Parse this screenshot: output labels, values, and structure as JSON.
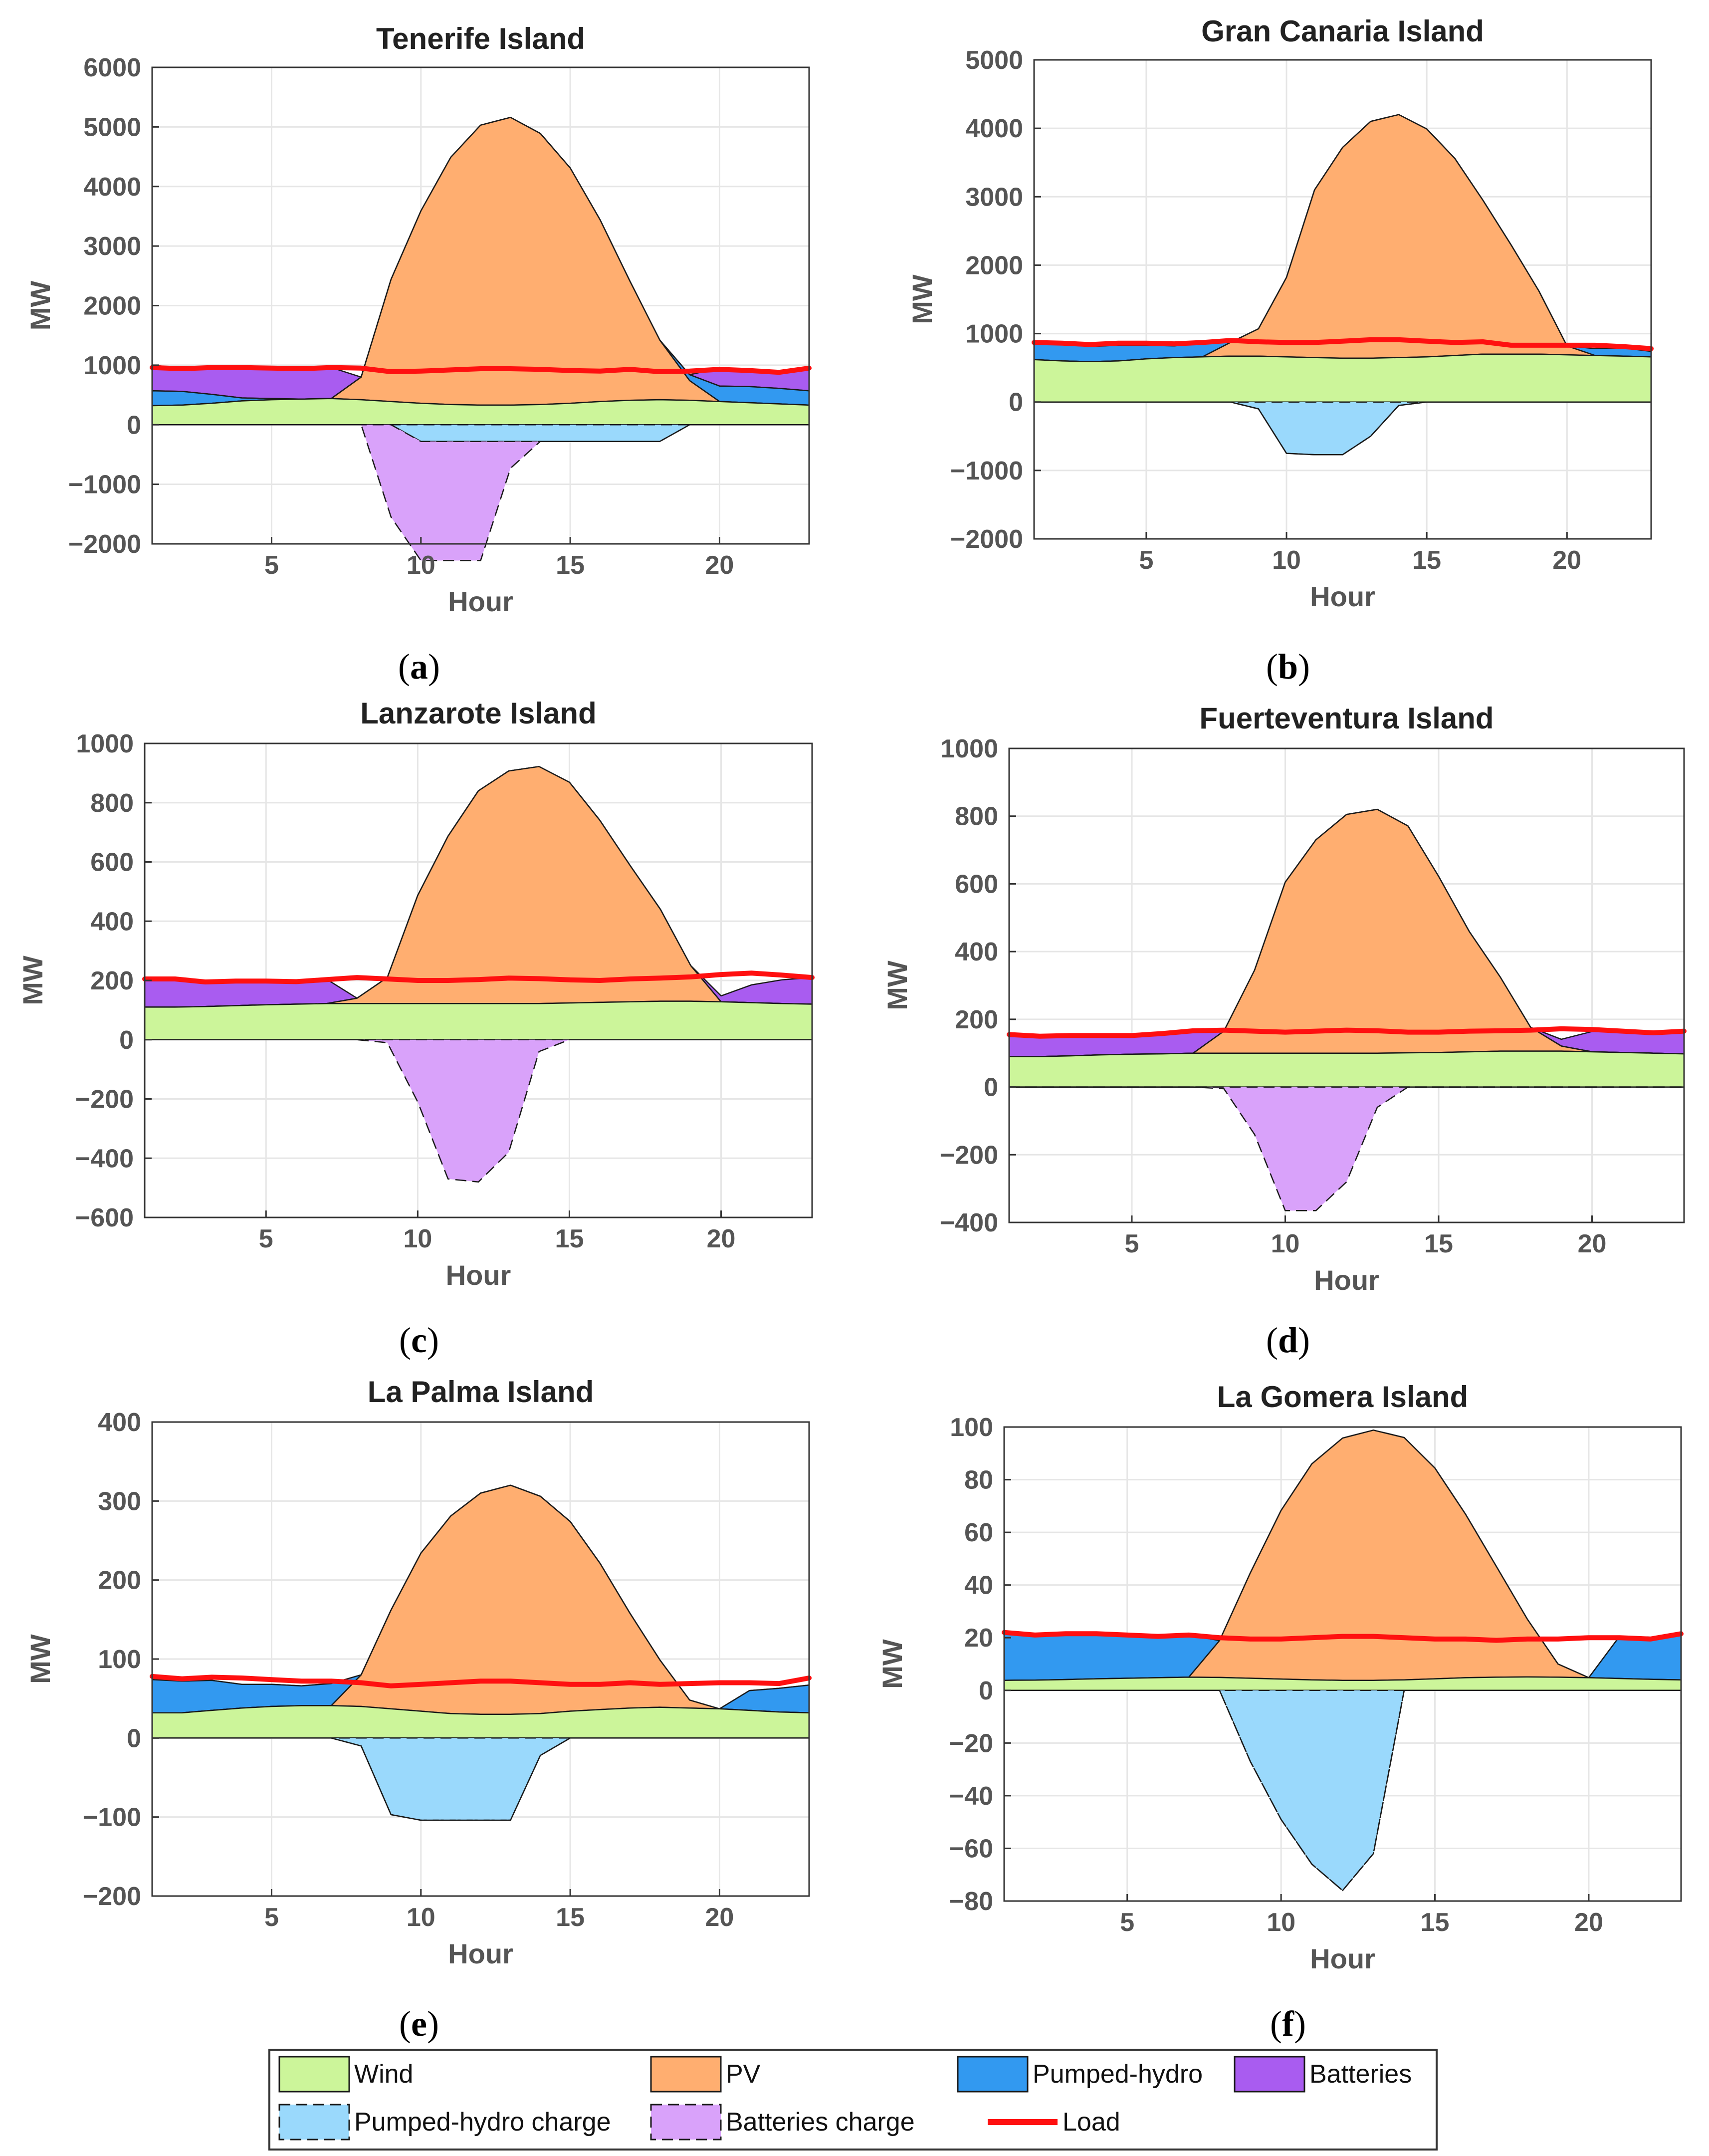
{
  "legend": {
    "items": [
      {
        "key": "wind",
        "label": "Wind"
      },
      {
        "key": "pv",
        "label": "PV"
      },
      {
        "key": "pumped",
        "label": "Pumped-hydro"
      },
      {
        "key": "batt",
        "label": "Batteries"
      },
      {
        "key": "pumped_charge",
        "label": "Pumped-hydro charge"
      },
      {
        "key": "batt_charge",
        "label": "Batteries charge"
      },
      {
        "key": "load",
        "label": "Load"
      }
    ]
  },
  "colors": {
    "wind": "#ccf59a",
    "pv": "#ffae70",
    "pumped": "#3299f0",
    "batt": "#a95cf0",
    "pumped_charge": "#9ad9fc",
    "batt_charge": "#d9a2fa",
    "load": "#ff1010",
    "grid": "#e6e6e6",
    "axis": "#333333"
  },
  "chart_data": [
    {
      "type": "area",
      "caption": "a",
      "title": "Tenerife Island",
      "xlabel": "Hour",
      "ylabel": "MW",
      "xlim": [
        1,
        23
      ],
      "ylim": [
        -2000,
        6000
      ],
      "xticks": [
        5,
        10,
        15,
        20
      ],
      "yticks": [
        -2000,
        -1000,
        0,
        1000,
        2000,
        3000,
        4000,
        5000,
        6000
      ],
      "ytick_labels": [
        "−2000",
        "−1000",
        "0",
        "1000",
        "2000",
        "3000",
        "4000",
        "5000",
        "6000"
      ],
      "x": [
        1,
        2,
        3,
        4,
        5,
        6,
        7,
        8,
        9,
        10,
        11,
        12,
        13,
        14,
        15,
        16,
        17,
        18,
        19,
        20,
        21,
        22,
        23
      ],
      "wind": [
        320,
        330,
        360,
        400,
        420,
        430,
        440,
        420,
        390,
        360,
        340,
        330,
        330,
        340,
        360,
        390,
        410,
        420,
        410,
        390,
        370,
        350,
        330
      ],
      "pv": [
        0,
        0,
        0,
        0,
        0,
        0,
        0,
        380,
        2050,
        3230,
        4150,
        4700,
        4830,
        4550,
        3950,
        3050,
        2000,
        1000,
        330,
        0,
        0,
        0,
        0
      ],
      "pumped": [
        250,
        230,
        150,
        50,
        20,
        0,
        0,
        0,
        0,
        0,
        0,
        0,
        0,
        0,
        0,
        0,
        0,
        0,
        100,
        260,
        270,
        260,
        240
      ],
      "batt": [
        430,
        390,
        480,
        520,
        500,
        500,
        520,
        0,
        0,
        0,
        0,
        0,
        0,
        0,
        0,
        0,
        0,
        0,
        0,
        300,
        280,
        290,
        410
      ],
      "pumped_charge": [
        0,
        0,
        0,
        0,
        0,
        0,
        0,
        0,
        0,
        -280,
        -280,
        -280,
        -280,
        -280,
        -280,
        -280,
        -280,
        -280,
        0,
        0,
        0,
        0,
        0
      ],
      "batt_charge": [
        0,
        0,
        0,
        0,
        0,
        0,
        0,
        0,
        -1550,
        -2000,
        -2000,
        -2000,
        -450,
        0,
        0,
        0,
        0,
        0,
        0,
        0,
        0,
        0,
        0
      ],
      "load": [
        960,
        940,
        960,
        960,
        950,
        940,
        960,
        950,
        890,
        900,
        920,
        940,
        940,
        930,
        910,
        900,
        930,
        890,
        900,
        930,
        910,
        880,
        950
      ]
    },
    {
      "type": "area",
      "caption": "b",
      "title": "Gran Canaria Island",
      "xlabel": "Hour",
      "ylabel": "MW",
      "xlim": [
        1,
        23
      ],
      "ylim": [
        -2000,
        5000
      ],
      "xticks": [
        5,
        10,
        15,
        20
      ],
      "yticks": [
        -2000,
        -1000,
        0,
        1000,
        2000,
        3000,
        4000,
        5000
      ],
      "ytick_labels": [
        "−2000",
        "−1000",
        "0",
        "1000",
        "2000",
        "3000",
        "4000",
        "5000"
      ],
      "x": [
        1,
        2,
        3,
        4,
        5,
        6,
        7,
        8,
        9,
        10,
        11,
        12,
        13,
        14,
        15,
        16,
        17,
        18,
        19,
        20,
        21,
        22,
        23
      ],
      "wind": [
        620,
        600,
        590,
        600,
        630,
        650,
        660,
        670,
        670,
        660,
        650,
        640,
        640,
        650,
        660,
        680,
        700,
        700,
        700,
        690,
        680,
        670,
        660
      ],
      "pv": [
        0,
        0,
        0,
        0,
        0,
        0,
        0,
        200,
        400,
        1160,
        2450,
        3080,
        3460,
        3550,
        3330,
        2880,
        2250,
        1600,
        920,
        130,
        0,
        0,
        0
      ],
      "pumped": [
        230,
        250,
        220,
        230,
        200,
        170,
        200,
        0,
        0,
        0,
        0,
        0,
        0,
        0,
        0,
        0,
        0,
        0,
        0,
        0,
        100,
        120,
        80
      ],
      "batt": [
        0,
        0,
        0,
        0,
        0,
        0,
        0,
        0,
        0,
        0,
        0,
        0,
        0,
        0,
        0,
        0,
        0,
        0,
        0,
        0,
        0,
        0,
        0
      ],
      "pumped_charge": [
        0,
        0,
        0,
        0,
        0,
        0,
        0,
        0,
        -100,
        -750,
        -770,
        -770,
        -500,
        -50,
        0,
        0,
        0,
        0,
        0,
        0,
        0,
        0,
        0
      ],
      "batt_charge": [
        0,
        0,
        0,
        0,
        0,
        0,
        0,
        0,
        0,
        0,
        0,
        0,
        0,
        0,
        0,
        0,
        0,
        0,
        0,
        0,
        0,
        0,
        0
      ],
      "load": [
        870,
        860,
        840,
        860,
        860,
        850,
        870,
        900,
        880,
        870,
        870,
        890,
        910,
        910,
        890,
        870,
        880,
        830,
        830,
        830,
        830,
        810,
        780
      ]
    },
    {
      "type": "area",
      "caption": "c",
      "title": "Lanzarote Island",
      "xlabel": "Hour",
      "ylabel": "MW",
      "xlim": [
        1,
        23
      ],
      "ylim": [
        -600,
        1000
      ],
      "xticks": [
        5,
        10,
        15,
        20
      ],
      "yticks": [
        -600,
        -400,
        -200,
        0,
        200,
        400,
        600,
        800,
        1000
      ],
      "ytick_labels": [
        "−600",
        "−400",
        "−200",
        "0",
        "200",
        "400",
        "600",
        "800",
        "1000"
      ],
      "x": [
        1,
        2,
        3,
        4,
        5,
        6,
        7,
        8,
        9,
        10,
        11,
        12,
        13,
        14,
        15,
        16,
        17,
        18,
        19,
        20,
        21,
        22,
        23
      ],
      "wind": [
        110,
        110,
        112,
        115,
        118,
        120,
        122,
        122,
        122,
        122,
        122,
        122,
        122,
        122,
        124,
        126,
        128,
        130,
        130,
        128,
        125,
        122,
        120
      ],
      "pv": [
        0,
        0,
        0,
        0,
        0,
        0,
        0,
        18,
        88,
        365,
        565,
        718,
        785,
        800,
        745,
        615,
        460,
        310,
        120,
        0,
        0,
        0,
        0
      ],
      "pumped": [
        0,
        0,
        0,
        0,
        0,
        0,
        0,
        0,
        0,
        0,
        0,
        0,
        0,
        0,
        0,
        0,
        0,
        0,
        0,
        0,
        0,
        0,
        0
      ],
      "batt": [
        100,
        100,
        88,
        82,
        80,
        78,
        82,
        0,
        0,
        0,
        0,
        0,
        0,
        0,
        0,
        0,
        0,
        0,
        0,
        20,
        60,
        80,
        90
      ],
      "pumped_charge": [
        0,
        0,
        0,
        0,
        0,
        0,
        0,
        0,
        0,
        0,
        0,
        0,
        0,
        0,
        0,
        0,
        0,
        0,
        0,
        0,
        0,
        0,
        0
      ],
      "batt_charge": [
        0,
        0,
        0,
        0,
        0,
        0,
        0,
        0,
        -10,
        -210,
        -470,
        -480,
        -380,
        -40,
        0,
        0,
        0,
        0,
        0,
        0,
        0,
        0,
        0
      ],
      "load": [
        205,
        205,
        195,
        198,
        198,
        196,
        203,
        210,
        205,
        200,
        200,
        203,
        208,
        206,
        202,
        200,
        205,
        208,
        212,
        220,
        225,
        218,
        210
      ]
    },
    {
      "type": "area",
      "caption": "d",
      "title": "Fuerteventura Island",
      "xlabel": "Hour",
      "ylabel": "MW",
      "xlim": [
        1,
        23
      ],
      "ylim": [
        -400,
        1000
      ],
      "xticks": [
        5,
        10,
        15,
        20
      ],
      "yticks": [
        -400,
        -200,
        0,
        200,
        400,
        600,
        800,
        1000
      ],
      "ytick_labels": [
        "−400",
        "−200",
        "0",
        "200",
        "400",
        "600",
        "800",
        "1000"
      ],
      "x": [
        1,
        2,
        3,
        4,
        5,
        6,
        7,
        8,
        9,
        10,
        11,
        12,
        13,
        14,
        15,
        16,
        17,
        18,
        19,
        20,
        21,
        22,
        23
      ],
      "wind": [
        90,
        90,
        92,
        95,
        97,
        98,
        100,
        100,
        100,
        100,
        100,
        100,
        100,
        101,
        102,
        104,
        106,
        106,
        106,
        104,
        102,
        100,
        98
      ],
      "pv": [
        0,
        0,
        0,
        0,
        0,
        0,
        0,
        65,
        245,
        505,
        630,
        705,
        720,
        670,
        520,
        355,
        220,
        70,
        15,
        0,
        0,
        0,
        0
      ],
      "pumped": [
        0,
        0,
        0,
        0,
        0,
        0,
        0,
        0,
        0,
        0,
        0,
        0,
        0,
        0,
        0,
        0,
        0,
        0,
        0,
        0,
        0,
        0,
        0
      ],
      "batt": [
        65,
        60,
        58,
        55,
        55,
        58,
        65,
        0,
        0,
        0,
        0,
        0,
        0,
        0,
        0,
        0,
        0,
        0,
        20,
        60,
        65,
        65,
        65
      ],
      "pumped_charge": [
        0,
        0,
        0,
        0,
        0,
        0,
        0,
        0,
        0,
        0,
        0,
        0,
        0,
        0,
        0,
        0,
        0,
        0,
        0,
        0,
        0,
        0,
        0
      ],
      "batt_charge": [
        0,
        0,
        0,
        0,
        0,
        0,
        0,
        -5,
        -140,
        -365,
        -365,
        -280,
        -60,
        0,
        0,
        0,
        0,
        0,
        0,
        0,
        0,
        0,
        0
      ],
      "load": [
        155,
        150,
        152,
        152,
        152,
        158,
        166,
        168,
        165,
        162,
        165,
        168,
        166,
        162,
        162,
        165,
        166,
        168,
        172,
        170,
        165,
        160,
        165
      ]
    },
    {
      "type": "area",
      "caption": "e",
      "title": "La Palma Island",
      "xlabel": "Hour",
      "ylabel": "MW",
      "xlim": [
        1,
        23
      ],
      "ylim": [
        -200,
        400
      ],
      "xticks": [
        5,
        10,
        15,
        20
      ],
      "yticks": [
        -200,
        -100,
        0,
        100,
        200,
        300,
        400
      ],
      "ytick_labels": [
        "−200",
        "−100",
        "0",
        "100",
        "200",
        "300",
        "400"
      ],
      "x": [
        1,
        2,
        3,
        4,
        5,
        6,
        7,
        8,
        9,
        10,
        11,
        12,
        13,
        14,
        15,
        16,
        17,
        18,
        19,
        20,
        21,
        22,
        23
      ],
      "wind": [
        32,
        32,
        35,
        38,
        40,
        41,
        41,
        40,
        37,
        34,
        31,
        30,
        30,
        31,
        34,
        36,
        38,
        39,
        38,
        37,
        35,
        33,
        32
      ],
      "pv": [
        0,
        0,
        0,
        0,
        0,
        0,
        0,
        40,
        125,
        200,
        250,
        280,
        290,
        275,
        240,
        185,
        120,
        60,
        10,
        0,
        0,
        0,
        0
      ],
      "pumped": [
        42,
        40,
        38,
        30,
        28,
        25,
        28,
        0,
        0,
        0,
        0,
        0,
        0,
        0,
        0,
        0,
        0,
        0,
        0,
        0,
        25,
        30,
        35
      ],
      "batt": [
        0,
        0,
        0,
        0,
        0,
        0,
        0,
        0,
        0,
        0,
        0,
        0,
        0,
        0,
        0,
        0,
        0,
        0,
        0,
        0,
        0,
        0,
        0
      ],
      "pumped_charge": [
        0,
        0,
        0,
        0,
        0,
        0,
        0,
        -10,
        -97,
        -104,
        -104,
        -104,
        -104,
        -22,
        0,
        0,
        0,
        0,
        0,
        0,
        0,
        0,
        0
      ],
      "batt_charge": [
        0,
        0,
        0,
        0,
        0,
        0,
        0,
        0,
        0,
        0,
        0,
        0,
        0,
        0,
        0,
        0,
        0,
        0,
        0,
        0,
        0,
        0,
        0
      ],
      "load": [
        78,
        75,
        77,
        76,
        74,
        72,
        72,
        70,
        66,
        68,
        70,
        72,
        72,
        70,
        68,
        68,
        70,
        68,
        69,
        70,
        70,
        69,
        76
      ]
    },
    {
      "type": "area",
      "caption": "f",
      "title": "La Gomera Island",
      "xlabel": "Hour",
      "ylabel": "MW",
      "xlim": [
        1,
        23
      ],
      "ylim": [
        -80,
        100
      ],
      "xticks": [
        5,
        10,
        15,
        20
      ],
      "yticks": [
        -80,
        -60,
        -40,
        -20,
        0,
        20,
        40,
        60,
        80,
        100
      ],
      "ytick_labels": [
        "−80",
        "−60",
        "−40",
        "−20",
        "0",
        "20",
        "40",
        "60",
        "80",
        "100"
      ],
      "x": [
        1,
        2,
        3,
        4,
        5,
        6,
        7,
        8,
        9,
        10,
        11,
        12,
        13,
        14,
        15,
        16,
        17,
        18,
        19,
        20,
        21,
        22,
        23
      ],
      "wind": [
        3.8,
        3.9,
        4.1,
        4.4,
        4.6,
        4.8,
        5.0,
        4.9,
        4.6,
        4.3,
        4.0,
        3.8,
        3.8,
        4.0,
        4.4,
        4.8,
        5.0,
        5.1,
        5.0,
        4.8,
        4.5,
        4.2,
        4.0
      ],
      "pv": [
        0,
        0,
        0,
        0,
        0,
        0,
        0,
        14,
        40,
        64,
        82,
        92,
        95,
        92,
        80,
        62,
        42,
        22,
        5,
        0,
        0,
        0,
        0
      ],
      "pumped": [
        18,
        17,
        17,
        17,
        16,
        16,
        16,
        0,
        0,
        0,
        0,
        0,
        0,
        0,
        0,
        0,
        0,
        0,
        0,
        0,
        16,
        16,
        17
      ],
      "batt": [
        0,
        0,
        0,
        0,
        0,
        0,
        0,
        0,
        0,
        0,
        0,
        0,
        0,
        0,
        0,
        0,
        0,
        0,
        0,
        0,
        0,
        0,
        0
      ],
      "pumped_charge": [
        0,
        0,
        0,
        0,
        0,
        0,
        0,
        0,
        -27,
        -49,
        -66,
        -76,
        -62,
        0,
        0,
        0,
        0,
        0,
        0,
        0,
        0,
        0,
        0
      ],
      "batt_charge": [
        0,
        0,
        0,
        0,
        0,
        0,
        0,
        0,
        0,
        0,
        0,
        0,
        0,
        0,
        0,
        0,
        0,
        0,
        0,
        0,
        0,
        0,
        0
      ],
      "load": [
        22,
        21,
        21.5,
        21.5,
        21,
        20.5,
        21,
        20,
        19.5,
        19.5,
        20,
        20.5,
        20.5,
        20,
        19.5,
        19.5,
        19,
        19.5,
        19.5,
        20,
        20,
        19.5,
        21.5
      ]
    }
  ]
}
